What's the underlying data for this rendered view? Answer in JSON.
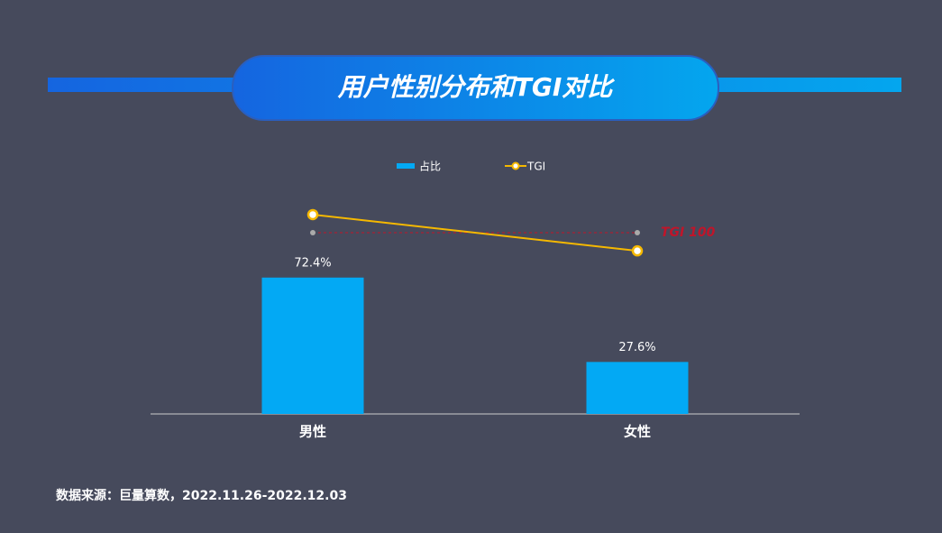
{
  "chart_data": {
    "type": "bar",
    "title": "用户性别分布和TGI对比",
    "categories": [
      "男性",
      "女性"
    ],
    "series": [
      {
        "name": "占比",
        "type": "bar",
        "color": "#03a9f4",
        "values": [
          72.4,
          27.6
        ],
        "value_labels": [
          "72.4%",
          "27.6%"
        ]
      },
      {
        "name": "TGI",
        "type": "line",
        "axis": "y2",
        "color": "#f5b800",
        "values": [
          145,
          55
        ]
      }
    ],
    "ylim": [
      0,
      124
    ],
    "y2lim": [
      -350,
      230
    ],
    "reference_line": {
      "value": 100,
      "label": "TGI 100",
      "axis": "y2",
      "color": "#c0152a"
    },
    "source": "数据来源：巨量算数，2022.11.26-2022.12.03"
  }
}
